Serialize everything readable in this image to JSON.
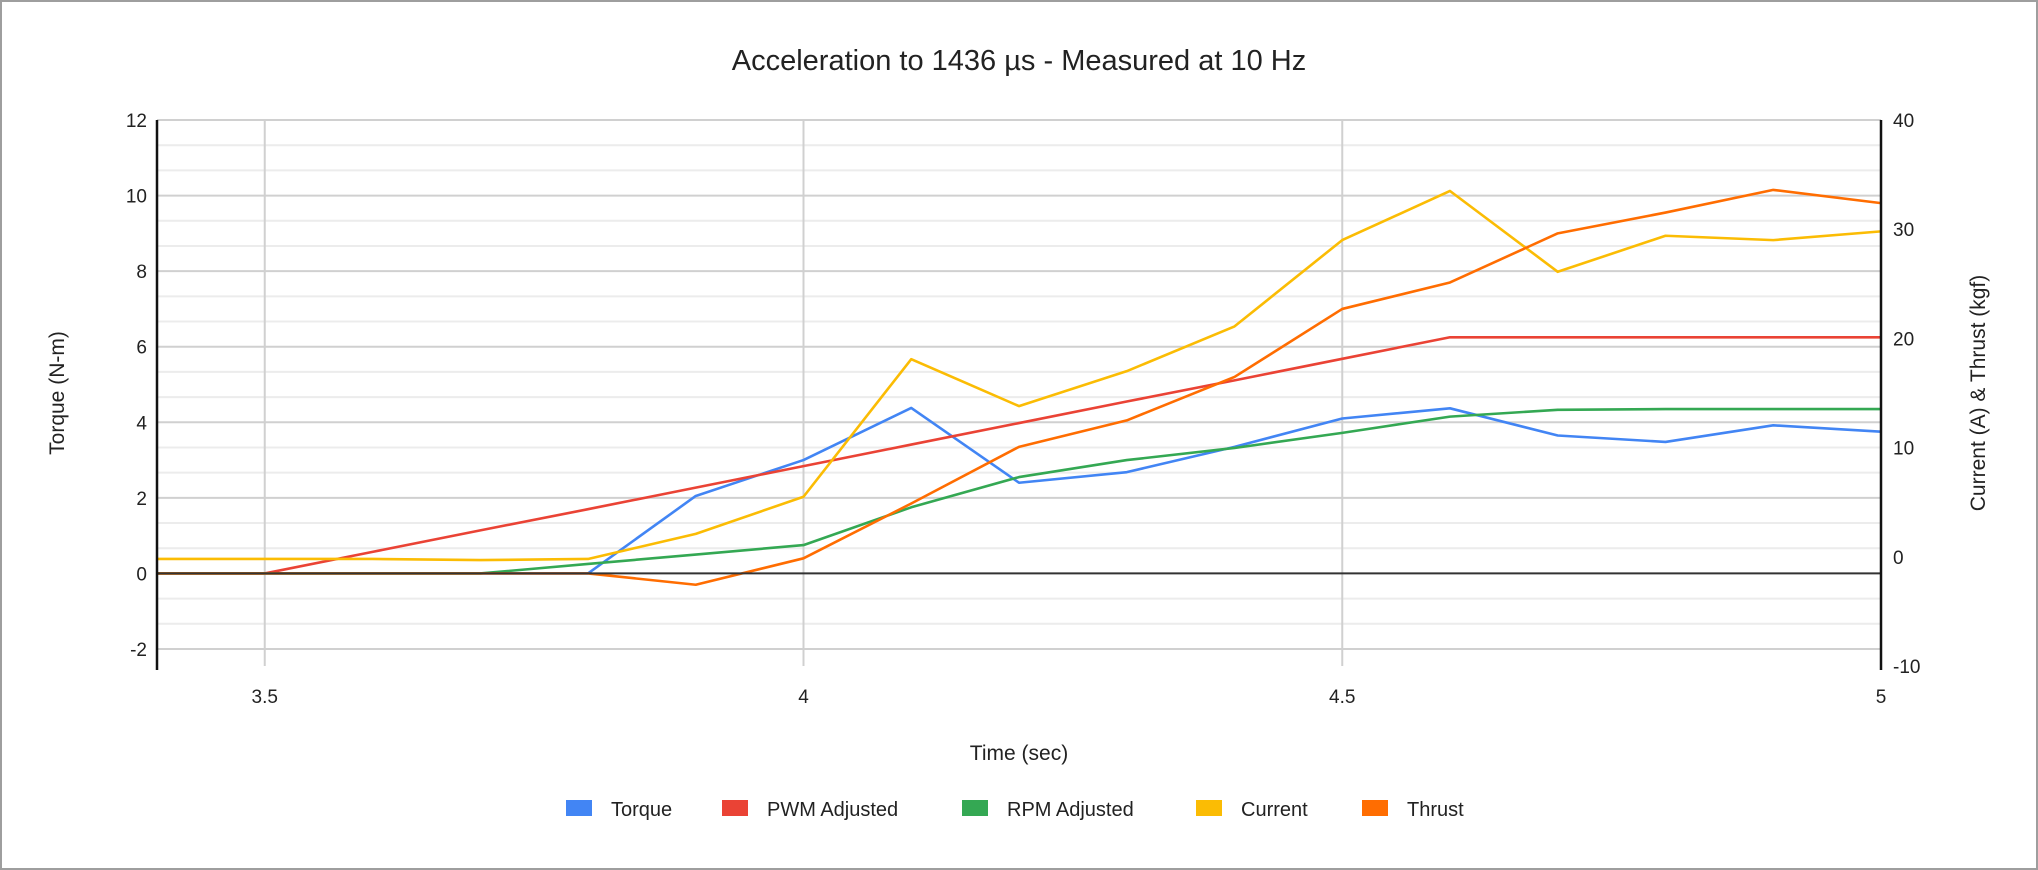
{
  "chart_data": {
    "type": "line",
    "title": "Acceleration to 1436 µs - Measured at 10 Hz",
    "xlabel": "Time (sec)",
    "ylabel": "Torque (N-m)",
    "ylabel_right": "Current (A) & Thrust (kgf)",
    "xlim": [
      3.4,
      5
    ],
    "ylim": [
      -2.45,
      12
    ],
    "ylim_right": [
      -10,
      40
    ],
    "x_ticks": [
      "3.5",
      "4",
      "4.5",
      "5"
    ],
    "y_ticks": [
      "12",
      "10",
      "8",
      "6",
      "4",
      "2",
      "0",
      "-2"
    ],
    "y_ticks_right": [
      "40",
      "30",
      "20",
      "10",
      "0",
      "-10"
    ],
    "grid": true,
    "legend_position": "bottom",
    "x": [
      3.4,
      3.5,
      3.6,
      3.7,
      3.8,
      3.9,
      4.0,
      4.1,
      4.2,
      4.3,
      4.4,
      4.5,
      4.6,
      4.7,
      4.8,
      4.9,
      5.0
    ],
    "series": [
      {
        "name": "Torque",
        "color": "#4285F4",
        "axis": "left",
        "values": [
          0,
          0,
          0,
          0,
          0,
          2.05,
          3.0,
          4.38,
          2.4,
          2.68,
          3.35,
          4.1,
          4.37,
          3.65,
          3.48,
          3.92,
          3.75
        ]
      },
      {
        "name": "PWM Adjusted",
        "color": "#EA4335",
        "axis": "left",
        "values": [
          0,
          0,
          0.57,
          1.14,
          1.7,
          2.27,
          2.84,
          3.41,
          3.98,
          4.55,
          5.11,
          5.68,
          6.25,
          6.25,
          6.25,
          6.25,
          6.25
        ]
      },
      {
        "name": "RPM Adjusted",
        "color": "#34A853",
        "axis": "left",
        "values": [
          0,
          0,
          0,
          0,
          0.25,
          0.5,
          0.75,
          1.75,
          2.55,
          3.0,
          3.32,
          3.72,
          4.15,
          4.33,
          4.35,
          4.35,
          4.35
        ]
      },
      {
        "name": "Current",
        "color": "#FBBC04",
        "axis": "right",
        "values": [
          -0.2,
          -0.2,
          -0.2,
          -0.3,
          -0.2,
          2.1,
          5.5,
          18.1,
          13.8,
          17.0,
          21.1,
          29.0,
          33.5,
          26.1,
          29.4,
          29.0,
          29.8
        ]
      },
      {
        "name": "Thrust",
        "color": "#FF6D01",
        "axis": "left",
        "values": [
          0,
          0,
          0,
          0,
          0,
          -0.3,
          0.4,
          1.85,
          3.35,
          4.05,
          5.2,
          7.0,
          7.7,
          9.0,
          9.55,
          10.15,
          9.8
        ]
      }
    ]
  }
}
